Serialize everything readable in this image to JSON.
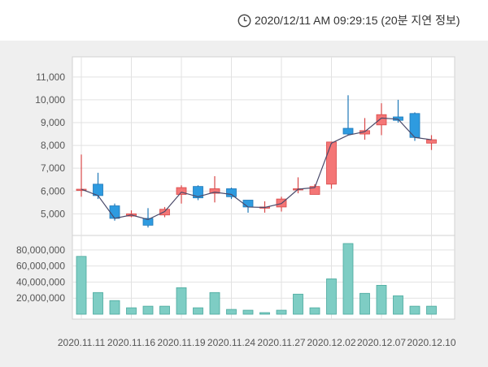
{
  "header": {
    "timestamp": "2020/12/11 AM 09:29:15 (20분 지연 정보)",
    "clock_icon": "clock-icon"
  },
  "colors": {
    "up": "#f47676",
    "down": "#2e9be0",
    "volume": "#7ecdc4",
    "line": "#4a4a6a"
  },
  "chart_data": [
    {
      "type": "candlestick",
      "ylim": [
        4300,
        11600
      ],
      "y_ticks": [
        "5,000",
        "6,000",
        "7,000",
        "8,000",
        "9,000",
        "10,000",
        "11,000"
      ],
      "y_tick_values": [
        5000,
        6000,
        7000,
        8000,
        9000,
        10000,
        11000
      ],
      "x": [
        "2020.11.11",
        "2020.11.12",
        "2020.11.13",
        "2020.11.16",
        "2020.11.17",
        "2020.11.18",
        "2020.11.19",
        "2020.11.20",
        "2020.11.23",
        "2020.11.24",
        "2020.11.25",
        "2020.11.26",
        "2020.11.27",
        "2020.11.30",
        "2020.12.01",
        "2020.12.02",
        "2020.12.03",
        "2020.12.04",
        "2020.12.07",
        "2020.12.08",
        "2020.12.09",
        "2020.12.10"
      ],
      "open": [
        6050,
        6300,
        5350,
        4900,
        4800,
        4950,
        5850,
        6200,
        5900,
        6100,
        5600,
        5250,
        5300,
        6050,
        5850,
        6300,
        8750,
        8500,
        8900,
        9250,
        9400,
        8100
      ],
      "close": [
        6080,
        5800,
        4800,
        5000,
        4500,
        5200,
        6150,
        5700,
        6100,
        5750,
        5300,
        5300,
        5650,
        6100,
        6200,
        8150,
        8500,
        8650,
        9350,
        9100,
        8350,
        8250
      ],
      "high": [
        7600,
        6800,
        5450,
        5150,
        5250,
        5300,
        6250,
        6250,
        6650,
        6150,
        5600,
        5550,
        5750,
        6600,
        6300,
        8150,
        10200,
        9200,
        9850,
        10000,
        9450,
        8450
      ],
      "low": [
        5750,
        5650,
        4700,
        4850,
        4400,
        4850,
        5450,
        5600,
        5500,
        5650,
        5050,
        5050,
        5100,
        5900,
        5850,
        6100,
        8450,
        8250,
        8450,
        9000,
        8200,
        7800
      ],
      "ma": [
        6080,
        5800,
        4800,
        4950,
        4750,
        5100,
        5950,
        5750,
        5950,
        5850,
        5300,
        5280,
        5450,
        6080,
        6150,
        8100,
        8450,
        8600,
        9200,
        9150,
        8350,
        8250
      ]
    },
    {
      "type": "bar",
      "ylim": [
        0,
        93000000
      ],
      "y_ticks": [
        "20,000,000",
        "40,000,000",
        "60,000,000",
        "80,000,000"
      ],
      "y_tick_values": [
        20000000,
        40000000,
        60000000,
        80000000
      ],
      "values": [
        72000000,
        27000000,
        17000000,
        8000000,
        10000000,
        10000000,
        33000000,
        8000000,
        27000000,
        6000000,
        5000000,
        2000000,
        5000000,
        25000000,
        8000000,
        44000000,
        88000000,
        26000000,
        36000000,
        23000000,
        10000000,
        10000000
      ]
    }
  ],
  "x_axis_labels": [
    "2020.11.11",
    "2020.11.16",
    "2020.11.19",
    "2020.11.24",
    "2020.11.27",
    "2020.12.02",
    "2020.12.07",
    "2020.12.10"
  ],
  "x_axis_label_indices": [
    0,
    3,
    6,
    9,
    12,
    15,
    18,
    21
  ]
}
